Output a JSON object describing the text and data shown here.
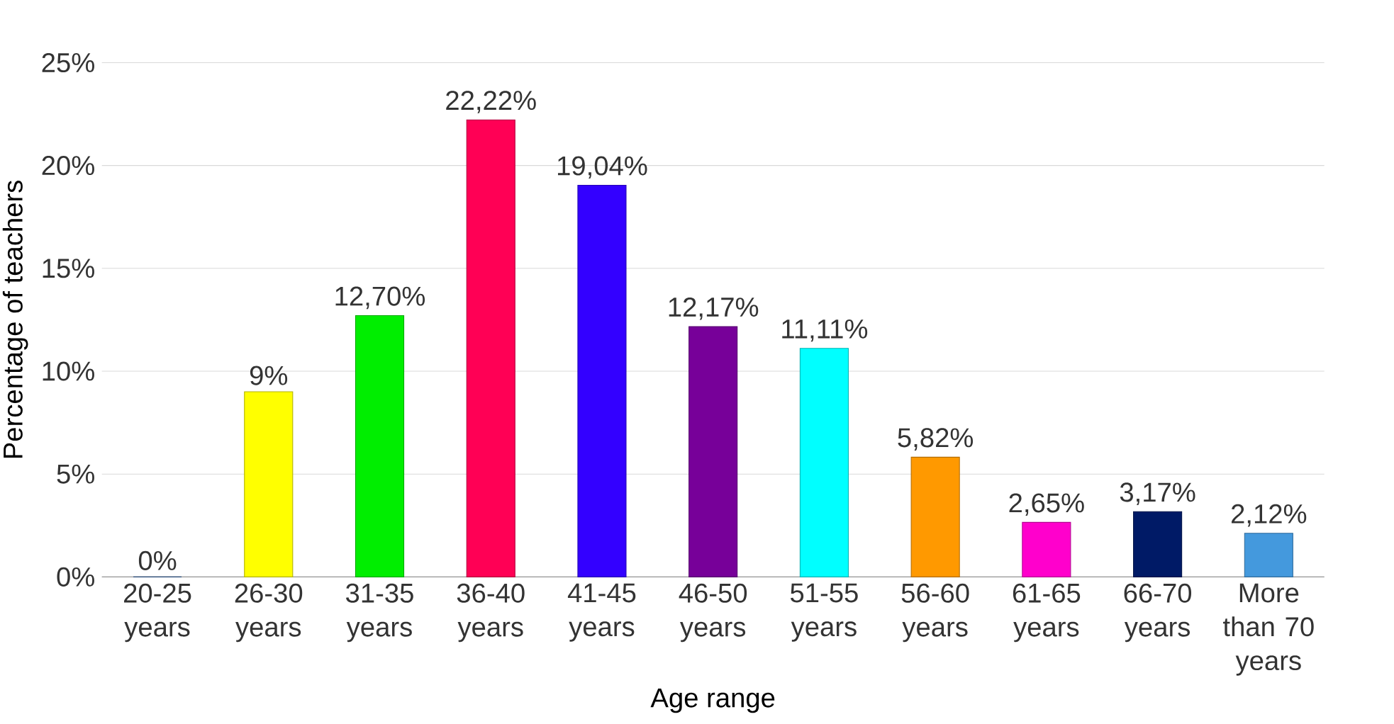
{
  "chart_data": {
    "type": "bar",
    "xlabel": "Age range",
    "ylabel": "Percentage of teachers",
    "categories": [
      "20-25 years",
      "26-30 years",
      "31-35 years",
      "36-40 years",
      "41-45 years",
      "46-50 years",
      "51-55 years",
      "56-60 years",
      "61-65 years",
      "66-70 years",
      "More than 70 years"
    ],
    "values": [
      0,
      9,
      12.7,
      22.22,
      19.04,
      12.17,
      11.11,
      5.82,
      2.65,
      3.17,
      2.12
    ],
    "value_labels": [
      "0%",
      "9%",
      "12,70%",
      "22,22%",
      "19,04%",
      "12,17%",
      "11,11%",
      "5,82%",
      "2,65%",
      "3,17%",
      "2,12%"
    ],
    "colors": [
      "#3366aa",
      "#ffff00",
      "#00ee00",
      "#ff0055",
      "#3300ff",
      "#770099",
      "#00ffff",
      "#ff9900",
      "#ff00cc",
      "#001a66",
      "#4499dd"
    ],
    "ylim": [
      0,
      25
    ],
    "yticks": [
      {
        "value": 0,
        "label": "0%"
      },
      {
        "value": 5,
        "label": "5%"
      },
      {
        "value": 10,
        "label": "10%"
      },
      {
        "value": 15,
        "label": "15%"
      },
      {
        "value": 20,
        "label": "20%"
      },
      {
        "value": 25,
        "label": "25%"
      }
    ],
    "grid": "y"
  }
}
